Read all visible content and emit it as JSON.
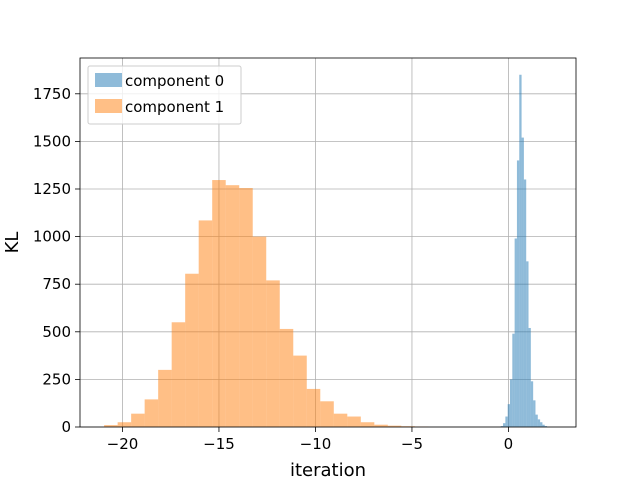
{
  "chart_data": {
    "type": "histogram",
    "xlabel": "iteration",
    "ylabel": "KL",
    "xlim": [
      -22.2,
      3.5
    ],
    "ylim": [
      0,
      1938
    ],
    "grid": true,
    "legend_placement": "top-left",
    "x_ticks": [
      -20,
      -15,
      -10,
      -5,
      0
    ],
    "x_tick_labels": [
      "−20",
      "−15",
      "−10",
      "−5",
      "0"
    ],
    "y_ticks": [
      0,
      250,
      500,
      750,
      1000,
      1250,
      1500,
      1750
    ],
    "y_tick_labels": [
      "0",
      "250",
      "500",
      "750",
      "1000",
      "1250",
      "1500",
      "1750"
    ],
    "series": [
      {
        "name": "component 0",
        "color": "#1f77b4",
        "alpha": 0.5,
        "bins": [
          {
            "x0": -0.4,
            "x1": -0.28,
            "count": 5
          },
          {
            "x0": -0.28,
            "x1": -0.16,
            "count": 20
          },
          {
            "x0": -0.16,
            "x1": -0.04,
            "count": 55
          },
          {
            "x0": -0.04,
            "x1": 0.08,
            "count": 120
          },
          {
            "x0": 0.08,
            "x1": 0.2,
            "count": 250
          },
          {
            "x0": 0.2,
            "x1": 0.32,
            "count": 490
          },
          {
            "x0": 0.32,
            "x1": 0.44,
            "count": 990
          },
          {
            "x0": 0.44,
            "x1": 0.56,
            "count": 1400
          },
          {
            "x0": 0.56,
            "x1": 0.68,
            "count": 1850
          },
          {
            "x0": 0.68,
            "x1": 0.8,
            "count": 1520
          },
          {
            "x0": 0.8,
            "x1": 0.92,
            "count": 1300
          },
          {
            "x0": 0.92,
            "x1": 1.04,
            "count": 870
          },
          {
            "x0": 1.04,
            "x1": 1.16,
            "count": 520
          },
          {
            "x0": 1.16,
            "x1": 1.28,
            "count": 240
          },
          {
            "x0": 1.28,
            "x1": 1.4,
            "count": 140
          },
          {
            "x0": 1.4,
            "x1": 1.52,
            "count": 65
          },
          {
            "x0": 1.52,
            "x1": 1.64,
            "count": 40
          },
          {
            "x0": 1.64,
            "x1": 1.76,
            "count": 25
          },
          {
            "x0": 1.76,
            "x1": 1.88,
            "count": 12
          },
          {
            "x0": 1.88,
            "x1": 2.0,
            "count": 5
          }
        ]
      },
      {
        "name": "component 1",
        "color": "#ff7f0e",
        "alpha": 0.5,
        "bins": [
          {
            "x0": -20.95,
            "x1": -20.25,
            "count": 10
          },
          {
            "x0": -20.25,
            "x1": -19.55,
            "count": 25
          },
          {
            "x0": -19.55,
            "x1": -18.85,
            "count": 70
          },
          {
            "x0": -18.85,
            "x1": -18.15,
            "count": 145
          },
          {
            "x0": -18.15,
            "x1": -17.45,
            "count": 300
          },
          {
            "x0": -17.45,
            "x1": -16.75,
            "count": 550
          },
          {
            "x0": -16.75,
            "x1": -16.05,
            "count": 805
          },
          {
            "x0": -16.05,
            "x1": -15.35,
            "count": 1085
          },
          {
            "x0": -15.35,
            "x1": -14.65,
            "count": 1297
          },
          {
            "x0": -14.65,
            "x1": -13.95,
            "count": 1270
          },
          {
            "x0": -13.95,
            "x1": -13.25,
            "count": 1255
          },
          {
            "x0": -13.25,
            "x1": -12.55,
            "count": 1000
          },
          {
            "x0": -12.55,
            "x1": -11.85,
            "count": 770
          },
          {
            "x0": -11.85,
            "x1": -11.15,
            "count": 515
          },
          {
            "x0": -11.15,
            "x1": -10.45,
            "count": 375
          },
          {
            "x0": -10.45,
            "x1": -9.75,
            "count": 200
          },
          {
            "x0": -9.75,
            "x1": -9.05,
            "count": 135
          },
          {
            "x0": -9.05,
            "x1": -8.35,
            "count": 70
          },
          {
            "x0": -8.35,
            "x1": -7.65,
            "count": 55
          },
          {
            "x0": -7.65,
            "x1": -6.95,
            "count": 25
          },
          {
            "x0": -6.95,
            "x1": -6.25,
            "count": 12
          },
          {
            "x0": -6.25,
            "x1": -5.55,
            "count": 7
          },
          {
            "x0": -5.55,
            "x1": -4.85,
            "count": 4
          },
          {
            "x0": -4.85,
            "x1": -4.15,
            "count": 2
          }
        ]
      }
    ]
  }
}
